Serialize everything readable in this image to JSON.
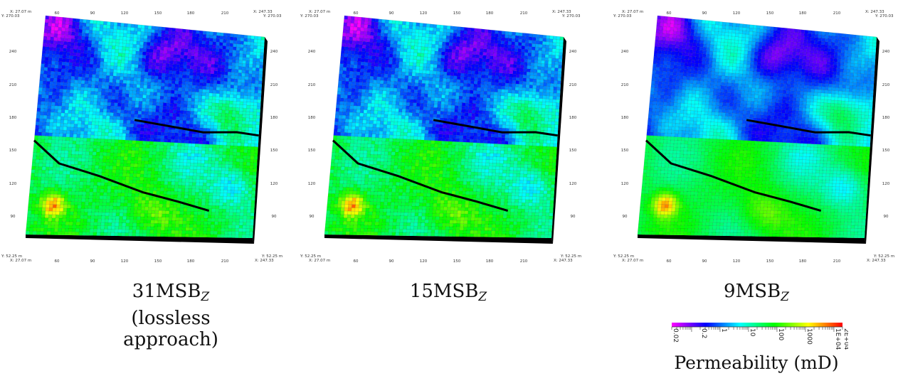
{
  "panels": [
    {
      "id": "p31",
      "caption_main": "31MSB",
      "caption_sub": "Z",
      "caption_note": "(lossless approach)",
      "corners": {
        "tl_y": "Y: 270.03",
        "tl_x": "X: 27.07 m",
        "tr_x": "X: 247.33",
        "tr_y": "Y: 270.03",
        "bl_y": "Y: 52.25 m",
        "bl_x": "X: 27.07 m",
        "br_y": "Y: 52.25 m",
        "br_x": "X: 247.33"
      },
      "smooth": 0
    },
    {
      "id": "p15",
      "caption_main": "15MSB",
      "caption_sub": "Z",
      "caption_note": "",
      "corners": {
        "tl_y": "Y: 270.03",
        "tl_x": "X: 27.07 m",
        "tr_x": "X: 247.33",
        "tr_y": "Y: 270.03",
        "bl_y": "Y: 52.25 m",
        "bl_x": "X: 27.07 m",
        "br_y": "Y: 52.25 m",
        "br_x": "X: 247.33"
      },
      "smooth": 0
    },
    {
      "id": "p9",
      "caption_main": "9MSB",
      "caption_sub": "Z",
      "caption_note": "",
      "corners": {
        "tl_y": "Y: 270.03",
        "tl_x": "X: 27.07 m",
        "tr_x": "X: 247.33",
        "tr_y": "Y: 270.03",
        "bl_y": "Y: 52.25 m",
        "bl_x": "X: 27.07 m",
        "br_y": "Y: 52.25 m",
        "br_x": "X: 247.33"
      },
      "smooth": 1
    }
  ],
  "x_ticks": [
    "60",
    "90",
    "120",
    "150",
    "180",
    "210"
  ],
  "y_ticks": [
    "240",
    "210",
    "180",
    "150",
    "120",
    "90"
  ],
  "colorbar": {
    "title": "Permeability (mD)",
    "ticks": [
      "0.02",
      "0.2",
      "1",
      "10",
      "100",
      "1000",
      "1E+04",
      "2E+04"
    ],
    "colors": [
      "#ff00ff",
      "#8000ff",
      "#0000ff",
      "#0080ff",
      "#00ffff",
      "#00ff80",
      "#00ff00",
      "#80ff00",
      "#ffff00",
      "#ff8000",
      "#ff0000"
    ]
  }
}
